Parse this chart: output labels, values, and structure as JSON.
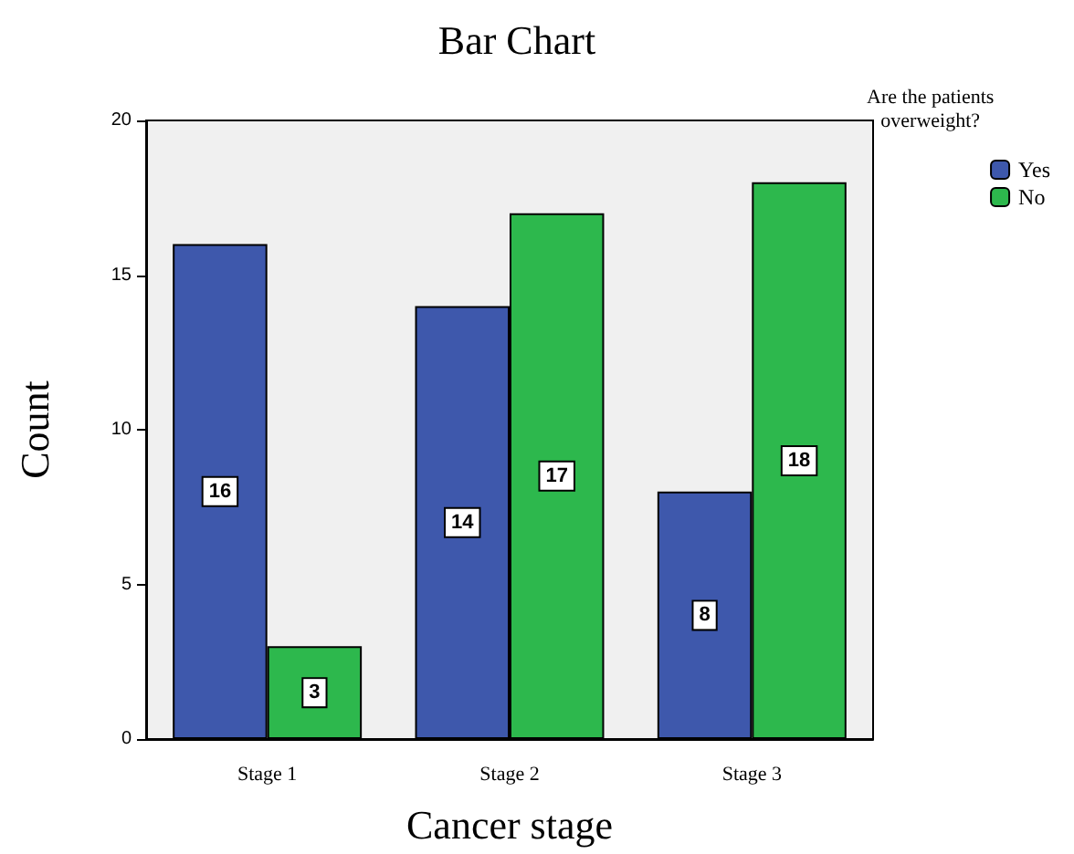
{
  "chart_data": {
    "type": "bar",
    "title": "Bar Chart",
    "xlabel": "Cancer stage",
    "ylabel": "Count",
    "legend_title": "Are the patients\noverweight?",
    "categories": [
      "Stage 1",
      "Stage 2",
      "Stage 3"
    ],
    "series": [
      {
        "name": "Yes",
        "color": "#3e58ac",
        "values": [
          16,
          14,
          8
        ]
      },
      {
        "name": "No",
        "color": "#2db84d",
        "values": [
          3,
          17,
          18
        ]
      }
    ],
    "ylim": [
      0,
      20
    ],
    "yticks": [
      0,
      5,
      10,
      15,
      20
    ],
    "grid": false,
    "legend": "top right",
    "data_labels": true
  }
}
